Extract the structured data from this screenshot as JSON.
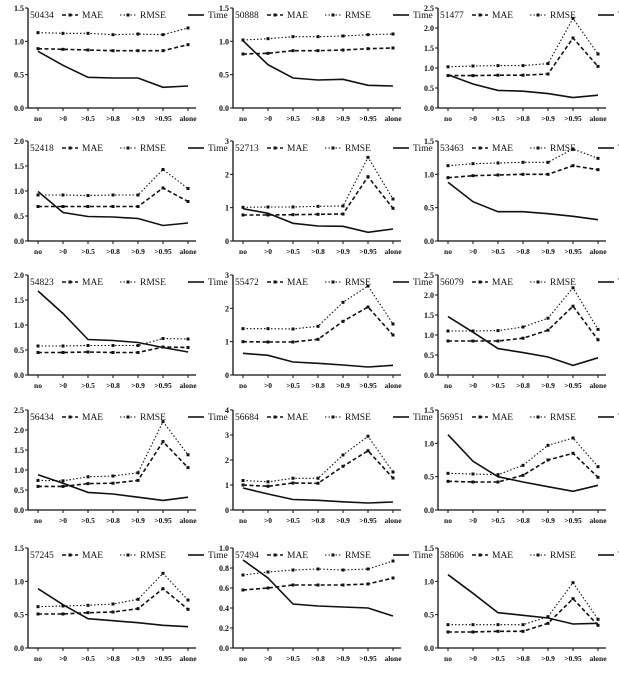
{
  "chart_data": [
    {
      "type": "line",
      "title": "50434",
      "ylim": [
        0,
        1.5
      ],
      "yticks": [
        "0.0",
        "0.5",
        "1.0",
        "1.5"
      ],
      "yvals": [
        0,
        0.5,
        1.0,
        1.5
      ],
      "series": [
        {
          "name": "MAE",
          "values": [
            0.89,
            0.88,
            0.87,
            0.86,
            0.86,
            0.86,
            0.95
          ]
        },
        {
          "name": "RMSE",
          "values": [
            1.13,
            1.12,
            1.12,
            1.1,
            1.11,
            1.1,
            1.2
          ]
        },
        {
          "name": "Time",
          "values": [
            0.85,
            0.64,
            0.46,
            0.45,
            0.45,
            0.31,
            0.33
          ]
        }
      ]
    },
    {
      "type": "line",
      "title": "50888",
      "ylim": [
        0,
        1.5
      ],
      "yticks": [
        "0.0",
        "0.5",
        "1.0",
        "1.5"
      ],
      "yvals": [
        0,
        0.5,
        1.0,
        1.5
      ],
      "series": [
        {
          "name": "MAE",
          "values": [
            0.81,
            0.82,
            0.86,
            0.86,
            0.87,
            0.89,
            0.9
          ]
        },
        {
          "name": "RMSE",
          "values": [
            1.02,
            1.04,
            1.07,
            1.07,
            1.08,
            1.1,
            1.11
          ]
        },
        {
          "name": "Time",
          "values": [
            1.01,
            0.65,
            0.45,
            0.42,
            0.43,
            0.34,
            0.33
          ]
        }
      ]
    },
    {
      "type": "line",
      "title": "51477",
      "ylim": [
        0,
        2.5
      ],
      "yticks": [
        "0.0",
        "0.5",
        "1.0",
        "1.5",
        "2.0",
        "2.5"
      ],
      "yvals": [
        0,
        0.5,
        1.0,
        1.5,
        2.0,
        2.5
      ],
      "series": [
        {
          "name": "MAE",
          "values": [
            0.81,
            0.81,
            0.82,
            0.82,
            0.85,
            1.75,
            1.04
          ]
        },
        {
          "name": "RMSE",
          "values": [
            1.03,
            1.05,
            1.06,
            1.06,
            1.11,
            2.24,
            1.35
          ]
        },
        {
          "name": "Time",
          "values": [
            0.83,
            0.6,
            0.44,
            0.42,
            0.36,
            0.26,
            0.32
          ]
        }
      ]
    },
    {
      "type": "line",
      "title": "52418",
      "ylim": [
        0,
        2.0
      ],
      "yticks": [
        "0.0",
        "0.5",
        "1.0",
        "1.5",
        "2.0"
      ],
      "yvals": [
        0,
        0.5,
        1.0,
        1.5,
        2.0
      ],
      "series": [
        {
          "name": "MAE",
          "values": [
            0.69,
            0.69,
            0.69,
            0.69,
            0.69,
            1.06,
            0.79
          ]
        },
        {
          "name": "RMSE",
          "values": [
            0.92,
            0.92,
            0.91,
            0.92,
            0.92,
            1.43,
            1.05
          ]
        },
        {
          "name": "Time",
          "values": [
            0.99,
            0.57,
            0.49,
            0.48,
            0.45,
            0.31,
            0.36
          ]
        }
      ]
    },
    {
      "type": "line",
      "title": "52713",
      "ylim": [
        0,
        3
      ],
      "yticks": [
        "0",
        "1",
        "2",
        "3"
      ],
      "yvals": [
        0,
        1,
        2,
        3
      ],
      "series": [
        {
          "name": "MAE",
          "values": [
            0.78,
            0.78,
            0.79,
            0.8,
            0.81,
            1.93,
            0.98
          ]
        },
        {
          "name": "RMSE",
          "values": [
            1.01,
            1.02,
            1.02,
            1.04,
            1.05,
            2.51,
            1.26
          ]
        },
        {
          "name": "Time",
          "values": [
            0.97,
            0.83,
            0.53,
            0.45,
            0.44,
            0.26,
            0.36
          ]
        }
      ]
    },
    {
      "type": "line",
      "title": "53463",
      "ylim": [
        0,
        1.5
      ],
      "yticks": [
        "0.0",
        "0.5",
        "1.0",
        "1.5"
      ],
      "yvals": [
        0,
        0.5,
        1.0,
        1.5
      ],
      "series": [
        {
          "name": "MAE",
          "values": [
            0.95,
            0.98,
            0.99,
            1.0,
            1.0,
            1.13,
            1.07
          ]
        },
        {
          "name": "RMSE",
          "values": [
            1.13,
            1.16,
            1.17,
            1.18,
            1.18,
            1.38,
            1.24
          ]
        },
        {
          "name": "Time",
          "values": [
            0.88,
            0.59,
            0.44,
            0.44,
            0.41,
            0.37,
            0.32
          ]
        }
      ]
    },
    {
      "type": "line",
      "title": "54823",
      "ylim": [
        0,
        2.0
      ],
      "yticks": [
        "0.0",
        "0.5",
        "1.0",
        "1.5",
        "2.0"
      ],
      "yvals": [
        0,
        0.5,
        1.0,
        1.5,
        2.0
      ],
      "series": [
        {
          "name": "MAE",
          "values": [
            0.45,
            0.45,
            0.46,
            0.45,
            0.45,
            0.56,
            0.55
          ]
        },
        {
          "name": "RMSE",
          "values": [
            0.58,
            0.58,
            0.59,
            0.59,
            0.59,
            0.73,
            0.72
          ]
        },
        {
          "name": "Time",
          "values": [
            1.68,
            1.23,
            0.71,
            0.69,
            0.65,
            0.55,
            0.46
          ]
        }
      ]
    },
    {
      "type": "line",
      "title": "55472",
      "ylim": [
        0,
        3
      ],
      "yticks": [
        "0",
        "1",
        "2",
        "3"
      ],
      "yvals": [
        0,
        1,
        2,
        3
      ],
      "series": [
        {
          "name": "MAE",
          "values": [
            1.0,
            0.99,
            0.99,
            1.07,
            1.61,
            2.04,
            1.2
          ]
        },
        {
          "name": "RMSE",
          "values": [
            1.39,
            1.39,
            1.38,
            1.46,
            2.18,
            2.67,
            1.53
          ]
        },
        {
          "name": "Time",
          "values": [
            0.65,
            0.59,
            0.39,
            0.35,
            0.3,
            0.24,
            0.29
          ]
        }
      ]
    },
    {
      "type": "line",
      "title": "56079",
      "ylim": [
        0,
        2.5
      ],
      "yticks": [
        "0.0",
        "0.5",
        "1.0",
        "1.5",
        "2.0",
        "2.5"
      ],
      "yvals": [
        0,
        0.5,
        1.0,
        1.5,
        2.0,
        2.5
      ],
      "series": [
        {
          "name": "MAE",
          "values": [
            0.85,
            0.85,
            0.85,
            0.92,
            1.12,
            1.72,
            0.88
          ]
        },
        {
          "name": "RMSE",
          "values": [
            1.1,
            1.1,
            1.11,
            1.2,
            1.42,
            2.18,
            1.14
          ]
        },
        {
          "name": "Time",
          "values": [
            1.46,
            1.07,
            0.66,
            0.56,
            0.45,
            0.24,
            0.43
          ]
        }
      ]
    },
    {
      "type": "line",
      "title": "56434",
      "ylim": [
        0,
        2.5
      ],
      "yticks": [
        "0.0",
        "0.5",
        "1.0",
        "1.5",
        "2.0",
        "2.5"
      ],
      "yvals": [
        0,
        0.5,
        1.0,
        1.5,
        2.0,
        2.5
      ],
      "series": [
        {
          "name": "MAE",
          "values": [
            0.59,
            0.59,
            0.66,
            0.67,
            0.74,
            1.71,
            1.06
          ]
        },
        {
          "name": "RMSE",
          "values": [
            0.74,
            0.73,
            0.83,
            0.85,
            0.93,
            2.21,
            1.38
          ]
        },
        {
          "name": "Time",
          "values": [
            0.88,
            0.67,
            0.44,
            0.4,
            0.32,
            0.24,
            0.32
          ]
        }
      ]
    },
    {
      "type": "line",
      "title": "56684",
      "ylim": [
        0,
        4
      ],
      "yticks": [
        "0",
        "1",
        "2",
        "3",
        "4"
      ],
      "yvals": [
        0,
        1,
        2,
        3,
        4
      ],
      "series": [
        {
          "name": "MAE",
          "values": [
            1.0,
            0.95,
            1.08,
            1.07,
            1.75,
            2.37,
            1.28
          ]
        },
        {
          "name": "RMSE",
          "values": [
            1.18,
            1.13,
            1.27,
            1.27,
            2.2,
            2.95,
            1.52
          ]
        },
        {
          "name": "Time",
          "values": [
            0.88,
            0.64,
            0.42,
            0.39,
            0.33,
            0.28,
            0.32
          ]
        }
      ]
    },
    {
      "type": "line",
      "title": "56951",
      "ylim": [
        0,
        1.5
      ],
      "yticks": [
        "0.0",
        "0.5",
        "1.0",
        "1.5"
      ],
      "yvals": [
        0,
        0.5,
        1.0,
        1.5
      ],
      "series": [
        {
          "name": "MAE",
          "values": [
            0.43,
            0.42,
            0.42,
            0.52,
            0.75,
            0.85,
            0.49
          ]
        },
        {
          "name": "RMSE",
          "values": [
            0.55,
            0.54,
            0.53,
            0.67,
            0.97,
            1.08,
            0.65
          ]
        },
        {
          "name": "Time",
          "values": [
            1.13,
            0.73,
            0.5,
            0.42,
            0.35,
            0.28,
            0.37
          ]
        }
      ]
    },
    {
      "type": "line",
      "title": "57245",
      "ylim": [
        0,
        1.5
      ],
      "yticks": [
        "0.0",
        "0.5",
        "1.0",
        "1.5"
      ],
      "yvals": [
        0,
        0.5,
        1.0,
        1.5
      ],
      "series": [
        {
          "name": "MAE",
          "values": [
            0.51,
            0.51,
            0.53,
            0.54,
            0.59,
            0.89,
            0.58
          ]
        },
        {
          "name": "RMSE",
          "values": [
            0.62,
            0.63,
            0.64,
            0.66,
            0.73,
            1.12,
            0.72
          ]
        },
        {
          "name": "Time",
          "values": [
            0.89,
            0.65,
            0.44,
            0.41,
            0.38,
            0.34,
            0.32
          ]
        }
      ]
    },
    {
      "type": "line",
      "title": "57494",
      "ylim": [
        0,
        1.0
      ],
      "yticks": [
        "0.0",
        "0.2",
        "0.4",
        "0.6",
        "0.8",
        "1.0"
      ],
      "yvals": [
        0,
        0.2,
        0.4,
        0.6,
        0.8,
        1.0
      ],
      "series": [
        {
          "name": "MAE",
          "values": [
            0.58,
            0.6,
            0.63,
            0.63,
            0.63,
            0.64,
            0.7
          ]
        },
        {
          "name": "RMSE",
          "values": [
            0.73,
            0.76,
            0.78,
            0.79,
            0.78,
            0.79,
            0.87
          ]
        },
        {
          "name": "Time",
          "values": [
            0.88,
            0.7,
            0.44,
            0.42,
            0.41,
            0.4,
            0.32
          ]
        }
      ]
    },
    {
      "type": "line",
      "title": "58606",
      "ylim": [
        0,
        1.5
      ],
      "yticks": [
        "0.0",
        "0.5",
        "1.0",
        "1.5"
      ],
      "yvals": [
        0,
        0.5,
        1.0,
        1.5
      ],
      "series": [
        {
          "name": "MAE",
          "values": [
            0.24,
            0.24,
            0.25,
            0.25,
            0.37,
            0.74,
            0.34
          ]
        },
        {
          "name": "RMSE",
          "values": [
            0.35,
            0.35,
            0.35,
            0.35,
            0.47,
            0.98,
            0.43
          ]
        },
        {
          "name": "Time",
          "values": [
            1.1,
            0.82,
            0.53,
            0.49,
            0.45,
            0.36,
            0.37
          ]
        }
      ]
    }
  ],
  "shared": {
    "categories": [
      "no",
      ">0",
      ">0.5",
      ">0.8",
      ">0.9",
      ">0.95",
      "alone"
    ],
    "legend": [
      "MAE",
      "RMSE",
      "Time"
    ],
    "legend_position": "top",
    "grid": false,
    "line_color": "#111111"
  }
}
